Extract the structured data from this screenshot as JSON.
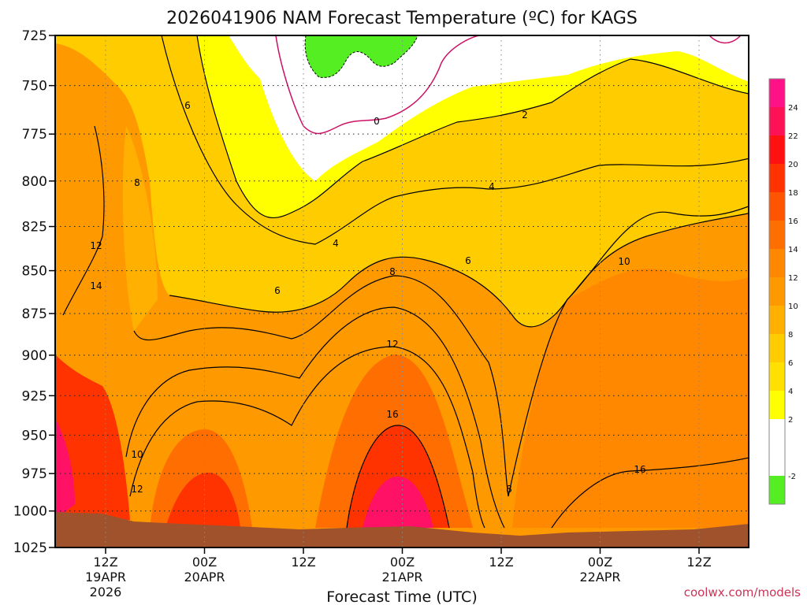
{
  "chart_data": {
    "type": "heatmap",
    "title": "2026041906 NAM Forecast Temperature (ºC) for KAGS",
    "xlabel": "Forecast Time (UTC)",
    "ylabel": "",
    "ylim": [
      1025,
      725
    ],
    "y_scale": "log-pressure",
    "y_ticks": [
      "725",
      "750",
      "775",
      "800",
      "825",
      "850",
      "875",
      "900",
      "925",
      "950",
      "975",
      "1000",
      "1025"
    ],
    "x_ticks": [
      {
        "line1": "12Z",
        "line2": "19APR",
        "line3": "2026"
      },
      {
        "line1": "00Z",
        "line2": "20APR",
        "line3": ""
      },
      {
        "line1": "12Z",
        "line2": "",
        "line3": ""
      },
      {
        "line1": "00Z",
        "line2": "21APR",
        "line3": ""
      },
      {
        "line1": "12Z",
        "line2": "",
        "line3": ""
      },
      {
        "line1": "00Z",
        "line2": "22APR",
        "line3": ""
      },
      {
        "line1": "12Z",
        "line2": "",
        "line3": ""
      }
    ],
    "grid": true,
    "colorbar": {
      "placement": "right",
      "levels": [
        -4,
        -2,
        2,
        4,
        6,
        8,
        10,
        12,
        14,
        16,
        18,
        20,
        22,
        24,
        26
      ],
      "tick_labels": [
        "-2",
        "2",
        "4",
        "6",
        "8",
        "10",
        "12",
        "14",
        "16",
        "18",
        "20",
        "22",
        "24"
      ],
      "colors": [
        "#55ee22",
        "#ffffff",
        "#ffff00",
        "#ffe000",
        "#ffcc00",
        "#ffb000",
        "#ff9900",
        "#ff8800",
        "#ff6e00",
        "#ff5500",
        "#ff3300",
        "#ff1111",
        "#ff1155",
        "#ff1188"
      ]
    },
    "contour_labels": [
      "0",
      "2",
      "4",
      "4",
      "6",
      "6",
      "6",
      "8",
      "8",
      "8",
      "10",
      "10",
      "12",
      "12",
      "12",
      "14",
      "16",
      "16"
    ],
    "terrain_color": "#a0522d"
  },
  "credit": "coolwx.com/models"
}
